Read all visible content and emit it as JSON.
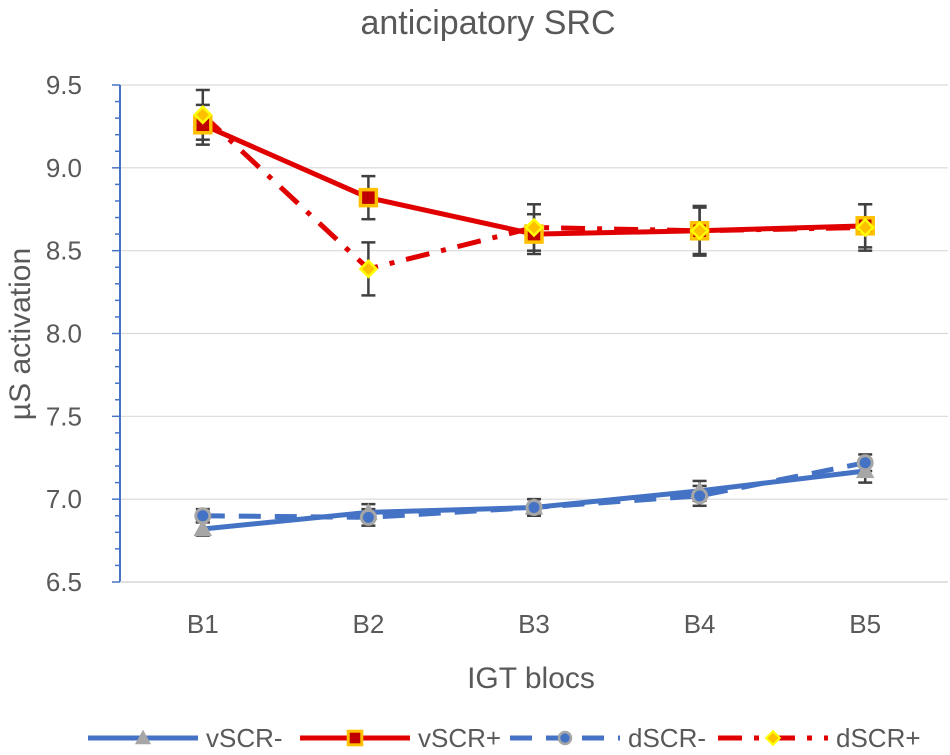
{
  "chart_data": {
    "type": "line",
    "title": "anticipatory SRC",
    "xlabel": "IGT blocs",
    "ylabel": "µS activation",
    "categories": [
      "B1",
      "B2",
      "B3",
      "B4",
      "B5"
    ],
    "ylim": [
      6.5,
      9.5
    ],
    "ytick_step": 0.5,
    "yticks": [
      "6.5",
      "7.0",
      "7.5",
      "8.0",
      "8.5",
      "9.0",
      "9.5"
    ],
    "grid": true,
    "legend_position": "bottom",
    "series": [
      {
        "name": "vSCR-",
        "values": [
          6.82,
          6.92,
          6.95,
          7.05,
          7.17
        ],
        "errors": [
          0.04,
          0.05,
          0.05,
          0.06,
          0.07
        ],
        "color": "#4472C4",
        "line_style": "solid",
        "marker": "triangle",
        "marker_fill": "#A6A6A6",
        "marker_stroke": "#A6A6A6"
      },
      {
        "name": "vSCR+",
        "values": [
          9.26,
          8.82,
          8.6,
          8.62,
          8.65
        ],
        "errors": [
          0.12,
          0.13,
          0.12,
          0.14,
          0.13
        ],
        "color": "#E00000",
        "line_style": "solid",
        "marker": "square",
        "marker_fill": "#C00000",
        "marker_stroke": "#FFC000"
      },
      {
        "name": "dSCR-",
        "values": [
          6.9,
          6.89,
          6.95,
          7.02,
          7.22
        ],
        "errors": [
          0.04,
          0.05,
          0.05,
          0.06,
          0.05
        ],
        "color": "#4472C4",
        "line_style": "dashed",
        "marker": "circle",
        "marker_fill": "#4472C4",
        "marker_stroke": "#A6A6A6"
      },
      {
        "name": "dSCR+",
        "values": [
          9.32,
          8.39,
          8.64,
          8.62,
          8.64
        ],
        "errors": [
          0.15,
          0.16,
          0.14,
          0.15,
          0.14
        ],
        "color": "#E00000",
        "line_style": "dashdot",
        "marker": "diamond",
        "marker_fill": "#FFC000",
        "marker_stroke": "#FFFF00"
      }
    ]
  }
}
